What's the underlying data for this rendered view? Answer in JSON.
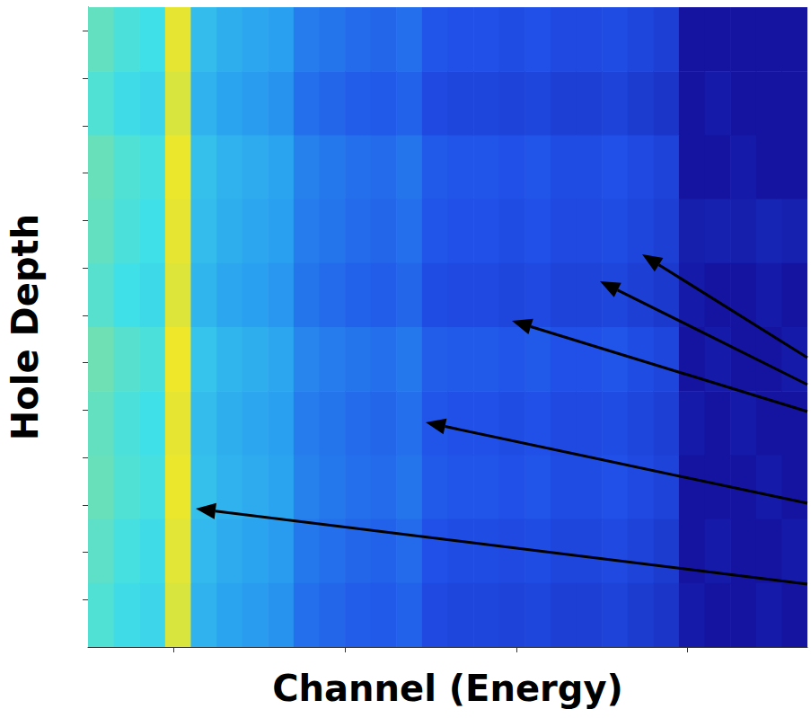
{
  "chart_data": {
    "type": "heatmap",
    "x_label": "Channel (Energy)",
    "y_label": "Hole Depth",
    "tick_labels": false,
    "grid": false,
    "xlim": [
      0,
      840
    ],
    "xticks": [
      100,
      300,
      500,
      700
    ],
    "ylim": [
      0,
      270
    ],
    "yticks": [
      10,
      30,
      50,
      70,
      90,
      110,
      130,
      150,
      170,
      190,
      210,
      230,
      250
    ],
    "x_bins": [
      0,
      30,
      60,
      90,
      120,
      150,
      180,
      210,
      240,
      270,
      300,
      330,
      360,
      390,
      420,
      450,
      480,
      510,
      540,
      570,
      600,
      630,
      660,
      690,
      720,
      750,
      780,
      810,
      840
    ],
    "y_bins": [
      0,
      27,
      54,
      81,
      108,
      135,
      162,
      189,
      216,
      243,
      270
    ],
    "color_range": [
      1,
      10
    ],
    "cells": [
      [
        7.0,
        6.6,
        6.4,
        9.6,
        5.4,
        5.0,
        4.8,
        4.6,
        3.8,
        3.6,
        3.4,
        3.3,
        3.5,
        2.9,
        2.8,
        2.8,
        2.7,
        2.8,
        2.6,
        2.6,
        2.7,
        2.5,
        2.3,
        0,
        0,
        0,
        0,
        0
      ],
      [
        6.7,
        6.3,
        6.1,
        9.3,
        5.1,
        4.7,
        4.5,
        4.3,
        3.5,
        3.3,
        3.1,
        3.0,
        3.2,
        2.6,
        2.5,
        2.5,
        2.4,
        2.5,
        2.3,
        2.3,
        2.4,
        2.2,
        2.0,
        0,
        1.2,
        0,
        0,
        0
      ],
      [
        7.1,
        6.7,
        6.5,
        9.7,
        5.5,
        5.1,
        4.9,
        4.7,
        3.9,
        3.7,
        3.5,
        3.4,
        3.6,
        3.0,
        2.9,
        2.9,
        2.8,
        2.9,
        2.7,
        2.7,
        2.8,
        2.6,
        2.4,
        0,
        0,
        1.2,
        0,
        0
      ],
      [
        7.0,
        6.6,
        6.4,
        9.6,
        5.4,
        5.0,
        4.8,
        4.6,
        3.8,
        3.6,
        3.4,
        3.3,
        3.5,
        2.9,
        2.8,
        2.8,
        2.7,
        2.8,
        2.6,
        2.6,
        2.7,
        2.5,
        2.3,
        1.3,
        1.4,
        1.3,
        1.5,
        1.4
      ],
      [
        6.8,
        6.4,
        6.2,
        9.4,
        5.2,
        4.8,
        4.6,
        4.4,
        3.6,
        3.4,
        3.2,
        3.1,
        3.3,
        2.7,
        2.6,
        2.6,
        2.5,
        2.6,
        2.4,
        2.4,
        2.5,
        2.3,
        2.1,
        1.2,
        0,
        0,
        1.2,
        0
      ],
      [
        7.2,
        6.8,
        6.6,
        9.8,
        5.6,
        5.2,
        5.0,
        4.8,
        4.0,
        3.8,
        3.6,
        3.5,
        3.7,
        3.1,
        3.0,
        3.0,
        2.9,
        3.0,
        2.8,
        2.8,
        2.9,
        2.7,
        2.5,
        0,
        1.2,
        0,
        0,
        1.2
      ],
      [
        7.0,
        6.6,
        6.4,
        9.6,
        5.4,
        5.0,
        4.8,
        4.6,
        3.8,
        3.6,
        3.4,
        3.3,
        3.5,
        2.9,
        2.8,
        2.8,
        2.7,
        2.8,
        2.6,
        2.6,
        2.7,
        2.5,
        2.3,
        1.2,
        0,
        1.2,
        0,
        0
      ],
      [
        7.1,
        6.7,
        6.5,
        9.7,
        5.5,
        5.1,
        4.9,
        4.7,
        3.9,
        3.7,
        3.5,
        3.4,
        3.6,
        3.0,
        2.9,
        2.9,
        2.8,
        2.9,
        2.7,
        2.7,
        2.8,
        2.6,
        2.4,
        0,
        0,
        0,
        1.2,
        0
      ],
      [
        6.9,
        6.5,
        6.3,
        9.5,
        5.3,
        4.9,
        4.7,
        4.5,
        3.7,
        3.5,
        3.3,
        3.2,
        3.4,
        2.8,
        2.7,
        2.7,
        2.6,
        2.7,
        2.5,
        2.5,
        2.6,
        2.4,
        2.2,
        0,
        1.2,
        0,
        0,
        1.2
      ],
      [
        6.7,
        6.3,
        6.1,
        9.3,
        5.1,
        4.7,
        4.5,
        4.3,
        3.5,
        3.3,
        3.1,
        3.0,
        3.2,
        2.6,
        2.5,
        2.5,
        2.4,
        2.5,
        2.3,
        2.3,
        2.4,
        2.2,
        2.0,
        1.2,
        0,
        0,
        1.2,
        0
      ]
    ]
  }
}
